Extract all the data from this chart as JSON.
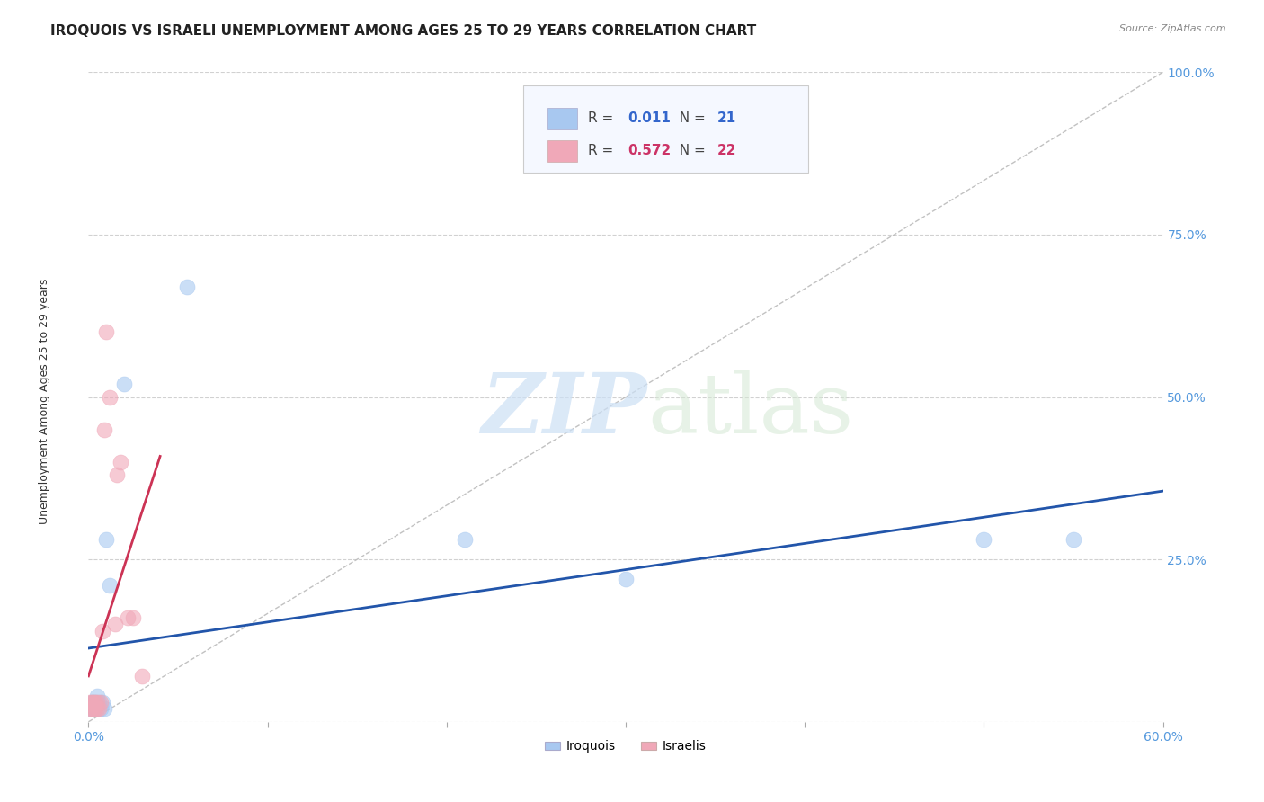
{
  "title": "IROQUOIS VS ISRAELI UNEMPLOYMENT AMONG AGES 25 TO 29 YEARS CORRELATION CHART",
  "source": "Source: ZipAtlas.com",
  "ylabel": "Unemployment Among Ages 25 to 29 years",
  "legend_labels": [
    "Iroquois",
    "Israelis"
  ],
  "r_iroquois": 0.011,
  "n_iroquois": 21,
  "r_israelis": 0.572,
  "n_israelis": 22,
  "iroquois_color": "#a8c8f0",
  "israelis_color": "#f0a8b8",
  "iroquois_trend_color": "#2255aa",
  "israelis_trend_color": "#cc3355",
  "diag_line_color": "#bbbbbb",
  "axis_label_color": "#5599dd",
  "grid_color": "#cccccc",
  "xlim": [
    0.0,
    0.6
  ],
  "ylim": [
    0.0,
    1.0
  ],
  "xticks": [
    0.0,
    0.1,
    0.2,
    0.3,
    0.4,
    0.5,
    0.6
  ],
  "yticks": [
    0.0,
    0.25,
    0.5,
    0.75,
    1.0
  ],
  "iroquois_x": [
    0.001,
    0.002,
    0.002,
    0.003,
    0.003,
    0.004,
    0.004,
    0.005,
    0.005,
    0.006,
    0.007,
    0.008,
    0.009,
    0.01,
    0.012,
    0.02,
    0.055,
    0.21,
    0.3,
    0.5,
    0.55
  ],
  "iroquois_y": [
    0.02,
    0.02,
    0.03,
    0.02,
    0.03,
    0.02,
    0.03,
    0.02,
    0.04,
    0.03,
    0.02,
    0.03,
    0.02,
    0.28,
    0.21,
    0.52,
    0.67,
    0.28,
    0.22,
    0.28,
    0.28
  ],
  "israelis_x": [
    0.001,
    0.001,
    0.002,
    0.002,
    0.003,
    0.003,
    0.004,
    0.004,
    0.005,
    0.005,
    0.006,
    0.007,
    0.008,
    0.009,
    0.01,
    0.012,
    0.015,
    0.016,
    0.018,
    0.022,
    0.025,
    0.03
  ],
  "israelis_y": [
    0.02,
    0.03,
    0.02,
    0.03,
    0.02,
    0.03,
    0.02,
    0.03,
    0.02,
    0.03,
    0.02,
    0.03,
    0.14,
    0.45,
    0.6,
    0.5,
    0.15,
    0.38,
    0.4,
    0.16,
    0.16,
    0.07
  ],
  "watermark_zip": "ZIP",
  "watermark_atlas": "atlas",
  "background_color": "#ffffff",
  "title_fontsize": 11,
  "axis_fontsize": 9,
  "tick_fontsize": 9,
  "legend_r_color_blue": "#3366cc",
  "legend_n_color_blue": "#3366cc",
  "legend_r_color_pink": "#cc3366",
  "legend_n_color_pink": "#cc3366"
}
